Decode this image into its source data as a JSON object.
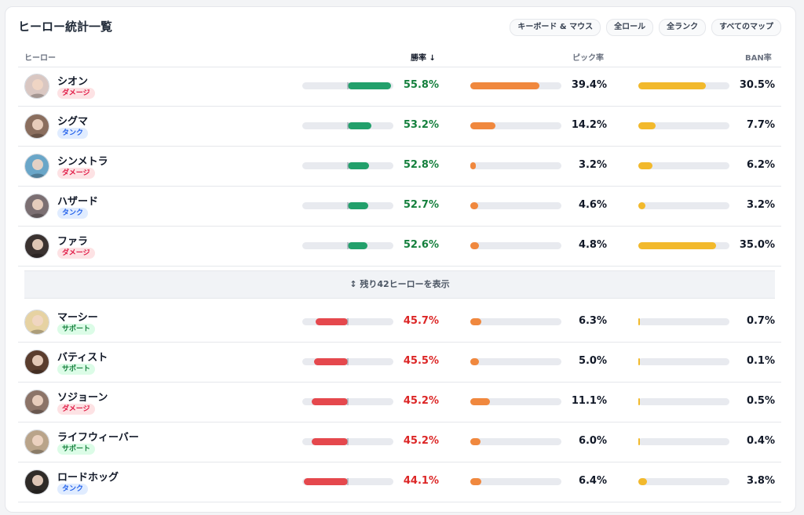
{
  "title": "ヒーロー統計一覧",
  "filters": [
    "キーボード & マウス",
    "全ロール",
    "全ランク",
    "すべてのマップ"
  ],
  "headers": {
    "hero": "ヒーロー",
    "winrate": "勝率 ↓",
    "pickrate": "ピック率",
    "banrate": "BAN率"
  },
  "show_more": "↕ 残り42ヒーローを表示",
  "top_rows": [
    {
      "name": "シオン",
      "role": "ダメージ",
      "role_type": "dmg",
      "win": "55.8%",
      "win_v": 55.8,
      "pick": "39.4%",
      "pick_v": 39.4,
      "ban": "30.5%",
      "ban_v": 30.5,
      "avatar": "#d9c7c2"
    },
    {
      "name": "シグマ",
      "role": "タンク",
      "role_type": "tank",
      "win": "53.2%",
      "win_v": 53.2,
      "pick": "14.2%",
      "pick_v": 14.2,
      "ban": "7.7%",
      "ban_v": 7.7,
      "avatar": "#8a6e5e"
    },
    {
      "name": "シンメトラ",
      "role": "ダメージ",
      "role_type": "dmg",
      "win": "52.8%",
      "win_v": 52.8,
      "pick": "3.2%",
      "pick_v": 3.2,
      "ban": "6.2%",
      "ban_v": 6.2,
      "avatar": "#6aa6c8"
    },
    {
      "name": "ハザード",
      "role": "タンク",
      "role_type": "tank",
      "win": "52.7%",
      "win_v": 52.7,
      "pick": "4.6%",
      "pick_v": 4.6,
      "ban": "3.2%",
      "ban_v": 3.2,
      "avatar": "#7b6f72"
    },
    {
      "name": "ファラ",
      "role": "ダメージ",
      "role_type": "dmg",
      "win": "52.6%",
      "win_v": 52.6,
      "pick": "4.8%",
      "pick_v": 4.8,
      "ban": "35.0%",
      "ban_v": 35.0,
      "avatar": "#3a3230"
    }
  ],
  "bottom_rows": [
    {
      "name": "マーシー",
      "role": "サポート",
      "role_type": "sup",
      "win": "45.7%",
      "win_v": 45.7,
      "pick": "6.3%",
      "pick_v": 6.3,
      "ban": "0.7%",
      "ban_v": 0.7,
      "avatar": "#e6d2a2"
    },
    {
      "name": "バティスト",
      "role": "サポート",
      "role_type": "sup",
      "win": "45.5%",
      "win_v": 45.5,
      "pick": "5.0%",
      "pick_v": 5.0,
      "ban": "0.1%",
      "ban_v": 0.1,
      "avatar": "#5a3d2e"
    },
    {
      "name": "ソジョーン",
      "role": "ダメージ",
      "role_type": "dmg",
      "win": "45.2%",
      "win_v": 45.2,
      "pick": "11.1%",
      "pick_v": 11.1,
      "ban": "0.5%",
      "ban_v": 0.5,
      "avatar": "#8c7468"
    },
    {
      "name": "ライフウィーバー",
      "role": "サポート",
      "role_type": "sup",
      "win": "45.2%",
      "win_v": 45.2,
      "pick": "6.0%",
      "pick_v": 6.0,
      "ban": "0.4%",
      "ban_v": 0.4,
      "avatar": "#b9a48a"
    },
    {
      "name": "ロードホッグ",
      "role": "タンク",
      "role_type": "tank",
      "win": "44.1%",
      "win_v": 44.1,
      "pick": "6.4%",
      "pick_v": 6.4,
      "ban": "3.8%",
      "ban_v": 3.8,
      "avatar": "#2f2b28"
    }
  ],
  "colors": {
    "win_good": "#22a06b",
    "win_bad": "#e5484d",
    "pick": "#f0883e",
    "ban": "#f2b92c"
  }
}
